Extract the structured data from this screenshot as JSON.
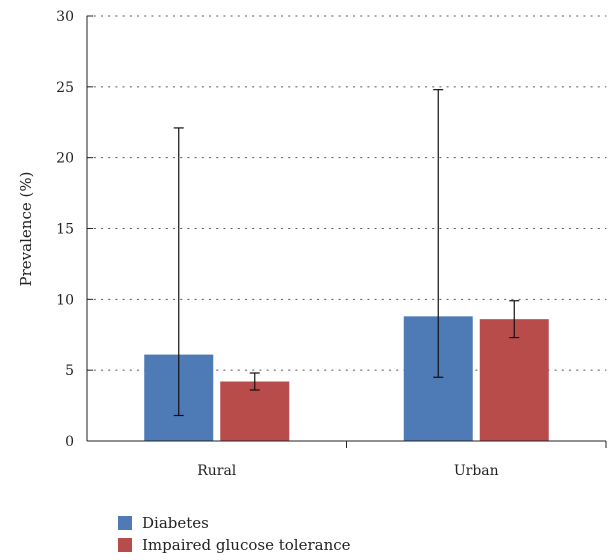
{
  "chart_data": {
    "type": "bar",
    "categories": [
      "Rural",
      "Urban"
    ],
    "ylabel": "Prevalence (%)",
    "ylim": [
      0,
      30
    ],
    "yticks": [
      0,
      5,
      10,
      15,
      20,
      25,
      30
    ],
    "grid": true,
    "legend_position": "bottom-left",
    "series": [
      {
        "name": "Diabetes",
        "color": "#4e7ab5",
        "values": [
          6.1,
          8.8
        ],
        "error_low": [
          1.8,
          4.5
        ],
        "error_high": [
          22.1,
          24.8
        ]
      },
      {
        "name": "Impaired glucose tolerance",
        "color": "#b84c4b",
        "values": [
          4.2,
          8.6
        ],
        "error_low": [
          3.6,
          7.3
        ],
        "error_high": [
          4.8,
          9.9
        ]
      }
    ]
  }
}
